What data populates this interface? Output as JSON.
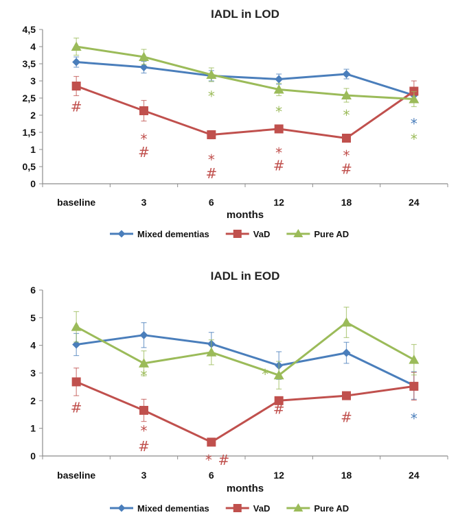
{
  "chart_data": [
    {
      "type": "line",
      "title": "IADL in LOD",
      "xlabel": "months",
      "ylabel": "",
      "categories": [
        "baseline",
        "3",
        "6",
        "12",
        "18",
        "24"
      ],
      "ylim": [
        0,
        4.5
      ],
      "yticks": [
        "0",
        "0,5",
        "1",
        "1,5",
        "2",
        "2,5",
        "3",
        "3,5",
        "4",
        "4,5"
      ],
      "grid": false,
      "legend": "bottom",
      "series": [
        {
          "name": "Mixed dementias",
          "color": "#4a7ebb",
          "marker": "diamond",
          "values": [
            3.55,
            3.4,
            3.15,
            3.05,
            3.2,
            2.58
          ],
          "errors": [
            0.15,
            0.17,
            0.15,
            0.15,
            0.14,
            0.15
          ]
        },
        {
          "name": "VaD",
          "color": "#c0504d",
          "marker": "square",
          "values": [
            2.85,
            2.13,
            1.43,
            1.6,
            1.33,
            2.7
          ],
          "errors": [
            0.28,
            0.3,
            0.12,
            0.1,
            0.1,
            0.3
          ]
        },
        {
          "name": "Pure AD",
          "color": "#9bbb59",
          "marker": "triangle",
          "values": [
            4.0,
            3.7,
            3.18,
            2.75,
            2.58,
            2.47
          ],
          "errors": [
            0.25,
            0.22,
            0.2,
            0.18,
            0.2,
            0.22
          ]
        }
      ],
      "annotations": [
        {
          "category": 0,
          "y": 2.25,
          "text": "#",
          "color": "#c0504d"
        },
        {
          "category": 1,
          "y": 1.3,
          "text": "*",
          "color": "#c0504d"
        },
        {
          "category": 1,
          "y": 0.92,
          "text": "#",
          "color": "#c0504d"
        },
        {
          "category": 2,
          "y": 2.55,
          "text": "*",
          "color": "#9bbb59"
        },
        {
          "category": 2,
          "y": 0.7,
          "text": "*",
          "color": "#c0504d"
        },
        {
          "category": 2,
          "y": 0.3,
          "text": "#",
          "color": "#c0504d"
        },
        {
          "category": 3,
          "y": 2.1,
          "text": "*",
          "color": "#9bbb59"
        },
        {
          "category": 3,
          "y": 0.9,
          "text": "*",
          "color": "#c0504d"
        },
        {
          "category": 3,
          "y": 0.53,
          "text": "#",
          "color": "#c0504d"
        },
        {
          "category": 4,
          "y": 2.0,
          "text": "*",
          "color": "#9bbb59"
        },
        {
          "category": 4,
          "y": 0.82,
          "text": "*",
          "color": "#c0504d"
        },
        {
          "category": 4,
          "y": 0.43,
          "text": "#",
          "color": "#c0504d"
        },
        {
          "category": 5,
          "y": 1.75,
          "text": "*",
          "color": "#4a7ebb"
        },
        {
          "category": 5,
          "y": 1.3,
          "text": "*",
          "color": "#9bbb59"
        }
      ]
    },
    {
      "type": "line",
      "title": "IADL in EOD",
      "xlabel": "months",
      "ylabel": "",
      "categories": [
        "baseline",
        "3",
        "6",
        "12",
        "18",
        "24"
      ],
      "ylim": [
        0,
        6
      ],
      "yticks": [
        "0",
        "1",
        "2",
        "3",
        "4",
        "5",
        "6"
      ],
      "grid": false,
      "legend": "bottom",
      "series": [
        {
          "name": "Mixed dementias",
          "color": "#4a7ebb",
          "marker": "diamond",
          "values": [
            4.03,
            4.37,
            4.05,
            3.27,
            3.73,
            2.55
          ],
          "errors": [
            0.4,
            0.45,
            0.42,
            0.5,
            0.38,
            0.5
          ]
        },
        {
          "name": "VaD",
          "color": "#c0504d",
          "marker": "square",
          "values": [
            2.68,
            1.65,
            0.5,
            2.0,
            2.18,
            2.52
          ],
          "errors": [
            0.5,
            0.4,
            0.1,
            0.1,
            0.12,
            0.5
          ]
        },
        {
          "name": "Pure AD",
          "color": "#9bbb59",
          "marker": "triangle",
          "values": [
            4.67,
            3.35,
            3.75,
            2.92,
            4.83,
            3.48
          ],
          "errors": [
            0.55,
            0.45,
            0.45,
            0.5,
            0.55,
            0.55
          ]
        }
      ],
      "annotations": [
        {
          "category": 0,
          "y": 1.75,
          "text": "#",
          "color": "#c0504d"
        },
        {
          "category": 1,
          "y": 2.9,
          "text": "*",
          "color": "#9bbb59"
        },
        {
          "category": 1,
          "y": 0.9,
          "text": "*",
          "color": "#c0504d"
        },
        {
          "category": 1,
          "y": 0.35,
          "text": "#",
          "color": "#c0504d"
        },
        {
          "category": 2,
          "y": -0.15,
          "text": "*",
          "color": "#c0504d",
          "dx": -4
        },
        {
          "category": 2,
          "y": -0.15,
          "text": "#",
          "color": "#c0504d",
          "dx": 18
        },
        {
          "category": 3,
          "y": 2.95,
          "text": "*",
          "color": "#9bbb59",
          "dx": -20
        },
        {
          "category": 3,
          "y": 1.7,
          "text": "#",
          "color": "#c0504d"
        },
        {
          "category": 4,
          "y": 1.4,
          "text": "#",
          "color": "#c0504d"
        },
        {
          "category": 5,
          "y": 1.35,
          "text": "*",
          "color": "#4a7ebb"
        }
      ]
    }
  ]
}
